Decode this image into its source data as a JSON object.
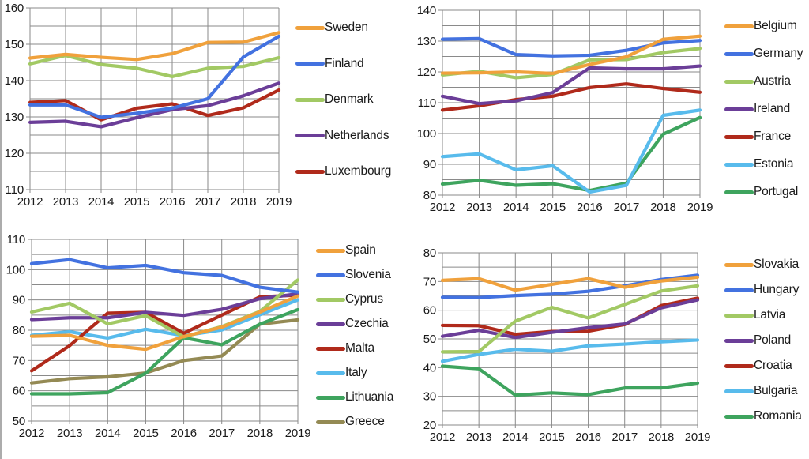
{
  "page": {
    "background": "#FFFFFF",
    "border_color": "#ACACAC",
    "grid_color": "#8A8A8A",
    "text_color": "#1A1A1A"
  },
  "chart_data": [
    {
      "id": "top-left",
      "type": "line",
      "title": "",
      "xlabel": "",
      "ylabel": "",
      "categories": [
        "2012",
        "2013",
        "2014",
        "2015",
        "2016",
        "2017",
        "2018",
        "2019"
      ],
      "ylim": [
        110,
        160
      ],
      "yticks": [
        "110",
        "120",
        "130",
        "140",
        "150",
        "160"
      ],
      "grid_step": 5,
      "grid": true,
      "legend_position": "right",
      "series": [
        {
          "name": "Sweden",
          "color": "#F0A13C",
          "values": [
            146.2,
            147.2,
            146.4,
            145.8,
            147.4,
            150.5,
            150.6,
            153.2
          ]
        },
        {
          "name": "Finland",
          "color": "#4372E0",
          "values": [
            133.3,
            133.3,
            129.9,
            131.0,
            132.4,
            135.0,
            146.5,
            152.2
          ]
        },
        {
          "name": "Denmark",
          "color": "#A2C964",
          "values": [
            144.6,
            146.9,
            144.4,
            143.4,
            141.1,
            143.4,
            143.9,
            146.3
          ]
        },
        {
          "name": "Netherlands",
          "color": "#6B3E98",
          "values": [
            128.5,
            128.8,
            127.3,
            129.8,
            132.0,
            133.1,
            135.8,
            139.3
          ]
        },
        {
          "name": "Luxembourg",
          "color": "#B02A1B",
          "values": [
            134.0,
            134.5,
            129.2,
            132.4,
            133.6,
            130.4,
            132.5,
            137.4
          ]
        }
      ]
    },
    {
      "id": "top-right",
      "type": "line",
      "title": "",
      "xlabel": "",
      "ylabel": "",
      "categories": [
        "2012",
        "2013",
        "2014",
        "2015",
        "2016",
        "2017",
        "2018",
        "2019"
      ],
      "ylim": [
        80,
        140
      ],
      "yticks": [
        "80",
        "90",
        "100",
        "110",
        "120",
        "130",
        "140"
      ],
      "grid_step": 5,
      "grid": true,
      "legend_position": "right",
      "series": [
        {
          "name": "Belgium",
          "color": "#F0A13C",
          "values": [
            119.6,
            119.7,
            120.0,
            119.5,
            122.4,
            124.9,
            130.6,
            131.6
          ]
        },
        {
          "name": "Germany",
          "color": "#4372E0",
          "values": [
            130.6,
            130.8,
            125.6,
            125.2,
            125.4,
            127.0,
            129.4,
            130.2
          ]
        },
        {
          "name": "Austria",
          "color": "#A2C964",
          "values": [
            119.0,
            120.2,
            118.1,
            119.2,
            123.9,
            124.0,
            126.3,
            127.6
          ]
        },
        {
          "name": "Ireland",
          "color": "#6B3E98",
          "values": [
            112.1,
            109.7,
            110.6,
            113.3,
            121.3,
            121.0,
            121.0,
            121.9
          ]
        },
        {
          "name": "France",
          "color": "#B02A1B",
          "values": [
            107.6,
            109.0,
            111.0,
            112.1,
            114.9,
            116.1,
            114.6,
            113.4
          ]
        },
        {
          "name": "Estonia",
          "color": "#58BBEC",
          "values": [
            92.5,
            93.4,
            88.2,
            89.5,
            81.0,
            83.2,
            105.9,
            107.6
          ]
        },
        {
          "name": "Portugal",
          "color": "#3EA45E",
          "values": [
            83.6,
            84.8,
            83.2,
            83.7,
            81.5,
            83.9,
            99.8,
            105.2
          ]
        }
      ]
    },
    {
      "id": "bottom-left",
      "type": "line",
      "title": "",
      "xlabel": "",
      "ylabel": "",
      "categories": [
        "2012",
        "2013",
        "2014",
        "2015",
        "2016",
        "2017",
        "2018",
        "2019"
      ],
      "ylim": [
        50,
        110
      ],
      "yticks": [
        "50",
        "60",
        "70",
        "80",
        "90",
        "100",
        "110"
      ],
      "grid_step": 5,
      "grid": true,
      "legend_position": "right",
      "series": [
        {
          "name": "Spain",
          "color": "#F0A13C",
          "values": [
            78.0,
            78.3,
            75.0,
            73.7,
            77.9,
            81.0,
            86.0,
            91.3
          ]
        },
        {
          "name": "Slovenia",
          "color": "#4372E0",
          "values": [
            102.0,
            103.3,
            100.6,
            101.4,
            99.0,
            98.1,
            94.2,
            92.6
          ]
        },
        {
          "name": "Cyprus",
          "color": "#A2C964",
          "values": [
            86.0,
            88.9,
            82.1,
            84.8,
            77.8,
            81.2,
            86.2,
            96.6
          ]
        },
        {
          "name": "Czechia",
          "color": "#6B3E98",
          "values": [
            83.5,
            84.1,
            84.1,
            85.9,
            84.9,
            86.9,
            90.4,
            92.0
          ]
        },
        {
          "name": "Malta",
          "color": "#B02A1B",
          "values": [
            66.6,
            74.9,
            85.6,
            85.9,
            79.0,
            85.0,
            91.0,
            91.6
          ]
        },
        {
          "name": "Italy",
          "color": "#58BBEC",
          "values": [
            78.3,
            79.5,
            77.4,
            80.3,
            78.2,
            80.1,
            85.1,
            90.0
          ]
        },
        {
          "name": "Lithuania",
          "color": "#3EA45E",
          "values": [
            59.0,
            59.0,
            59.4,
            65.8,
            77.5,
            75.2,
            82.0,
            86.8
          ]
        },
        {
          "name": "Greece",
          "color": "#948A54",
          "values": [
            62.6,
            64.0,
            64.6,
            65.9,
            70.0,
            71.5,
            82.0,
            83.4
          ]
        }
      ]
    },
    {
      "id": "bottom-right",
      "type": "line",
      "title": "",
      "xlabel": "",
      "ylabel": "",
      "categories": [
        "2012",
        "2013",
        "2014",
        "2015",
        "2016",
        "2017",
        "2018",
        "2019"
      ],
      "ylim": [
        20,
        80
      ],
      "yticks": [
        "20",
        "30",
        "40",
        "50",
        "60",
        "70",
        "80"
      ],
      "grid_step": 5,
      "grid": true,
      "legend_position": "right",
      "series": [
        {
          "name": "Slovakia",
          "color": "#F0A13C",
          "values": [
            70.4,
            71.0,
            67.0,
            69.0,
            71.0,
            68.0,
            70.2,
            71.5
          ]
        },
        {
          "name": "Hungary",
          "color": "#4372E0",
          "values": [
            64.5,
            64.4,
            65.1,
            65.6,
            66.6,
            68.5,
            70.7,
            72.2
          ]
        },
        {
          "name": "Latvia",
          "color": "#A2C964",
          "values": [
            45.5,
            45.6,
            56.2,
            61.0,
            57.3,
            62.0,
            66.7,
            68.5
          ]
        },
        {
          "name": "Poland",
          "color": "#6B3E98",
          "values": [
            50.9,
            53.0,
            50.5,
            52.3,
            53.9,
            55.2,
            60.8,
            63.6
          ]
        },
        {
          "name": "Croatia",
          "color": "#B02A1B",
          "values": [
            54.7,
            54.6,
            51.6,
            52.6,
            52.7,
            55.0,
            61.6,
            64.2
          ]
        },
        {
          "name": "Bulgaria",
          "color": "#58BBEC",
          "values": [
            42.2,
            44.6,
            46.4,
            45.7,
            47.6,
            48.2,
            49.0,
            49.6
          ]
        },
        {
          "name": "Romania",
          "color": "#3EA45E",
          "values": [
            40.5,
            39.6,
            30.4,
            31.2,
            30.6,
            32.9,
            32.9,
            34.6
          ]
        }
      ]
    }
  ]
}
